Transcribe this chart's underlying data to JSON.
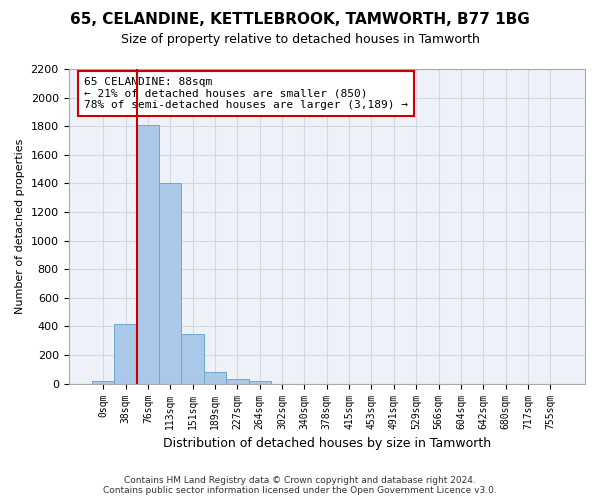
{
  "title_line1": "65, CELANDINE, KETTLEBROOK, TAMWORTH, B77 1BG",
  "title_line2": "Size of property relative to detached houses in Tamworth",
  "xlabel": "Distribution of detached houses by size in Tamworth",
  "ylabel": "Number of detached properties",
  "bar_values": [
    20,
    420,
    1810,
    1400,
    350,
    80,
    30,
    20,
    0,
    0,
    0,
    0,
    0,
    0,
    0,
    0,
    0,
    0,
    0,
    0,
    0
  ],
  "bar_labels": [
    "0sqm",
    "38sqm",
    "76sqm",
    "113sqm",
    "151sqm",
    "189sqm",
    "227sqm",
    "264sqm",
    "302sqm",
    "340sqm",
    "378sqm",
    "415sqm",
    "453sqm",
    "491sqm",
    "529sqm",
    "566sqm",
    "604sqm",
    "642sqm",
    "680sqm",
    "717sqm",
    "755sqm"
  ],
  "bar_color": "#aac8e8",
  "bar_edge_color": "#6aaad4",
  "grid_color": "#d0d8e8",
  "background_color": "#eef2f8",
  "vline_x_index": 2,
  "vline_color": "#cc0000",
  "annotation_text": "65 CELANDINE: 88sqm\n← 21% of detached houses are smaller (850)\n78% of semi-detached houses are larger (3,189) →",
  "annotation_box_edgecolor": "#cc0000",
  "ylim": [
    0,
    2200
  ],
  "yticks": [
    0,
    200,
    400,
    600,
    800,
    1000,
    1200,
    1400,
    1600,
    1800,
    2000,
    2200
  ],
  "footer_line1": "Contains HM Land Registry data © Crown copyright and database right 2024.",
  "footer_line2": "Contains public sector information licensed under the Open Government Licence v3.0."
}
